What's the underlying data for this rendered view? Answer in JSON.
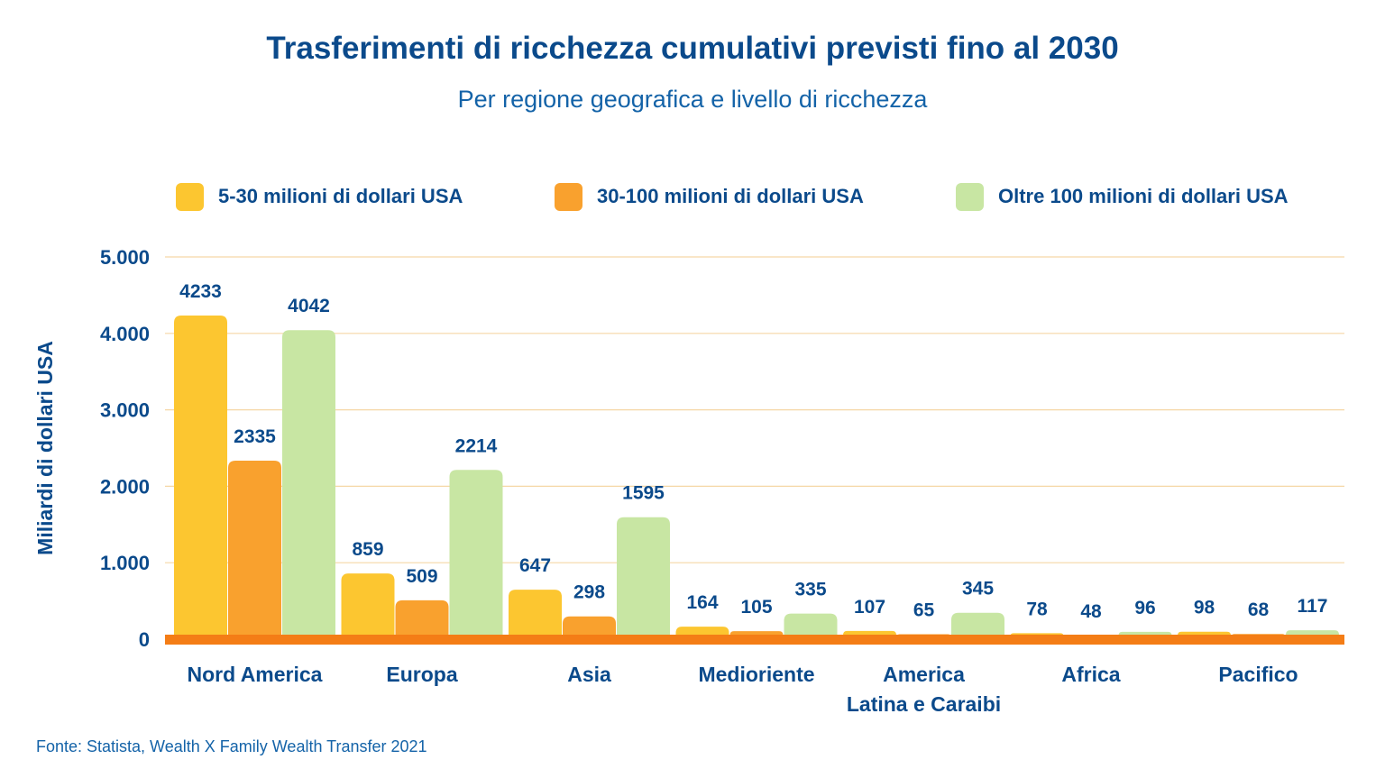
{
  "title": "Trasferimenti di ricchezza cumulativi previsti fino al 2030",
  "subtitle": "Per regione geografica e livello di ricchezza",
  "source": "Fonte: Statista, Wealth X Family Wealth Transfer 2021",
  "colors": {
    "series": [
      "#fcc630",
      "#f9a12e",
      "#c8e6a3"
    ],
    "baseline": "#f47d16",
    "grid": "#f5d7a6",
    "text": "#0b4a8b"
  },
  "legend": [
    "5-30 milioni di dollari USA",
    "30-100 milioni di dollari USA",
    "Oltre 100 milioni di dollari USA"
  ],
  "chart_data": {
    "type": "bar",
    "title": "Trasferimenti di ricchezza cumulativi previsti fino al 2030",
    "subtitle": "Per regione geografica e livello di ricchezza",
    "ylabel": "Miliardi di dollari USA",
    "xlabel": "",
    "ylim": [
      0,
      5000
    ],
    "yticks": [
      0,
      1000,
      2000,
      3000,
      4000,
      5000
    ],
    "ytick_labels": [
      "0",
      "1.000",
      "2.000",
      "3.000",
      "4.000",
      "5.000"
    ],
    "grid": true,
    "legend_position": "top",
    "categories": [
      [
        "Nord America"
      ],
      [
        "Europa"
      ],
      [
        "Asia"
      ],
      [
        "Medioriente"
      ],
      [
        "America",
        "Latina e Caraibi"
      ],
      [
        "Africa"
      ],
      [
        "Pacifico"
      ]
    ],
    "series": [
      {
        "name": "5-30 milioni di dollari USA",
        "values": [
          4233,
          859,
          647,
          164,
          107,
          78,
          98
        ]
      },
      {
        "name": "30-100 milioni di dollari USA",
        "values": [
          2335,
          509,
          298,
          105,
          65,
          48,
          68
        ]
      },
      {
        "name": "Oltre 100 milioni di dollari USA",
        "values": [
          4042,
          2214,
          1595,
          335,
          345,
          96,
          117
        ]
      }
    ]
  }
}
